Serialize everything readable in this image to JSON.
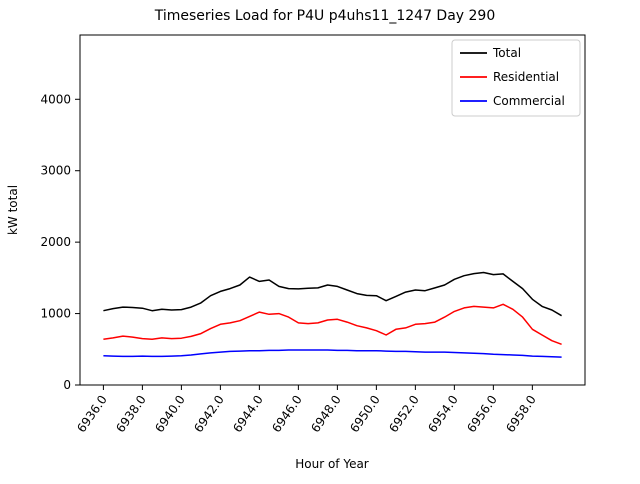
{
  "title": "Timeseries Load for P4U p4uhs11_1247  Day 290",
  "chart_data": {
    "type": "line",
    "title": "Timeseries Load for P4U p4uhs11_1247  Day 290",
    "xlabel": "Hour of Year",
    "ylabel": "kW total",
    "xlim": [
      6934.8,
      6960.7
    ],
    "ylim": [
      0,
      4900
    ],
    "grid": false,
    "legend_position": "upper right",
    "x_ticks": [
      6936,
      6938,
      6940,
      6942,
      6944,
      6946,
      6948,
      6950,
      6952,
      6954,
      6956,
      6958
    ],
    "x_tick_labels": [
      "6936.0",
      "6938.0",
      "6940.0",
      "6942.0",
      "6944.0",
      "6946.0",
      "6948.0",
      "6950.0",
      "6952.0",
      "6954.0",
      "6956.0",
      "6958.0"
    ],
    "y_ticks": [
      0,
      1000,
      2000,
      3000,
      4000
    ],
    "y_tick_labels": [
      "0",
      "1000",
      "2000",
      "3000",
      "4000"
    ],
    "x": [
      6936.0,
      6936.5,
      6937.0,
      6937.5,
      6938.0,
      6938.5,
      6939.0,
      6939.5,
      6940.0,
      6940.5,
      6941.0,
      6941.5,
      6942.0,
      6942.5,
      6943.0,
      6943.5,
      6944.0,
      6944.5,
      6945.0,
      6945.5,
      6946.0,
      6946.5,
      6947.0,
      6947.5,
      6948.0,
      6948.5,
      6949.0,
      6949.5,
      6950.0,
      6950.5,
      6951.0,
      6951.5,
      6952.0,
      6952.5,
      6953.0,
      6953.5,
      6954.0,
      6954.5,
      6955.0,
      6955.5,
      6956.0,
      6956.5,
      6957.0,
      6957.5,
      6958.0,
      6958.5,
      6959.0,
      6959.5
    ],
    "series": [
      {
        "name": "Total",
        "color": "#000000",
        "values": [
          1040,
          1070,
          1090,
          1085,
          1075,
          1040,
          1060,
          1050,
          1055,
          1090,
          1150,
          1250,
          1310,
          1350,
          1400,
          1510,
          1450,
          1470,
          1380,
          1350,
          1345,
          1355,
          1360,
          1400,
          1380,
          1330,
          1280,
          1255,
          1250,
          1180,
          1240,
          1300,
          1330,
          1320,
          1360,
          1400,
          1480,
          1530,
          1560,
          1575,
          1545,
          1555,
          1450,
          1350,
          1200,
          1100,
          1050,
          970
        ]
      },
      {
        "name": "Residential",
        "color": "#ff0000",
        "values": [
          640,
          660,
          685,
          670,
          650,
          640,
          660,
          650,
          655,
          680,
          720,
          790,
          850,
          870,
          900,
          960,
          1020,
          990,
          1000,
          950,
          870,
          860,
          870,
          910,
          920,
          880,
          830,
          800,
          760,
          700,
          780,
          800,
          850,
          860,
          880,
          950,
          1030,
          1080,
          1100,
          1090,
          1080,
          1130,
          1060,
          950,
          780,
          700,
          620,
          570
        ]
      },
      {
        "name": "Commercial",
        "color": "#0000ff",
        "values": [
          410,
          405,
          400,
          400,
          405,
          400,
          400,
          405,
          410,
          420,
          435,
          450,
          460,
          470,
          475,
          480,
          480,
          485,
          485,
          490,
          490,
          490,
          490,
          490,
          485,
          485,
          480,
          480,
          480,
          475,
          470,
          470,
          465,
          460,
          460,
          460,
          455,
          450,
          445,
          440,
          430,
          425,
          420,
          415,
          405,
          400,
          395,
          390
        ]
      }
    ]
  }
}
